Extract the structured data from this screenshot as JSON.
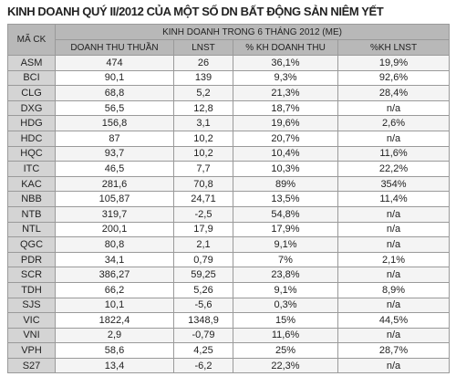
{
  "header": {
    "title": "KINH DOANH QUÝ II/2012 CỦA MỘT SỐ DN BẤT ĐỘNG SẢN NIÊM YẾT"
  },
  "table": {
    "corner": "MÃ CK",
    "group": "KINH DOANH TRONG 6 THÁNG 2012 (ME)",
    "columns": [
      "DOANH THU THUẦN",
      "LNST",
      "% KH DOANH THU",
      "%KH LNST"
    ],
    "rows": [
      [
        "ASM",
        "474",
        "26",
        "36,1%",
        "19,9%"
      ],
      [
        "BCI",
        "90,1",
        "139",
        "9,3%",
        "92,6%"
      ],
      [
        "CLG",
        "68,8",
        "5,2",
        "21,3%",
        "28,4%"
      ],
      [
        "DXG",
        "56,5",
        "12,8",
        "18,7%",
        "n/a"
      ],
      [
        "HDG",
        "156,8",
        "3,1",
        "19,6%",
        "2,6%"
      ],
      [
        "HDC",
        "87",
        "10,2",
        "20,7%",
        "n/a"
      ],
      [
        "HQC",
        "93,7",
        "10,2",
        "10,4%",
        "11,6%"
      ],
      [
        "ITC",
        "46,5",
        "7,7",
        "10,3%",
        "22,2%"
      ],
      [
        "KAC",
        "281,6",
        "70,8",
        "89%",
        "354%"
      ],
      [
        "NBB",
        "105,87",
        "24,71",
        "13,5%",
        "11,4%"
      ],
      [
        "NTB",
        "319,7",
        "-2,5",
        "54,8%",
        "n/a"
      ],
      [
        "NTL",
        "200,1",
        "17,9",
        "17,9%",
        "n/a"
      ],
      [
        "QGC",
        "80,8",
        "2,1",
        "9,1%",
        "n/a"
      ],
      [
        "PDR",
        "34,1",
        "0,79",
        "7%",
        "2,1%"
      ],
      [
        "SCR",
        "386,27",
        "59,25",
        "23,8%",
        "n/a"
      ],
      [
        "TDH",
        "66,2",
        "5,26",
        "9,1%",
        "8,9%"
      ],
      [
        "SJS",
        "10,1",
        "-5,6",
        "0,3%",
        "n/a"
      ],
      [
        "VIC",
        "1822,4",
        "1348,9",
        "15%",
        "44,5%"
      ],
      [
        "VNI",
        "2,9",
        "-0,79",
        "11,6%",
        "n/a"
      ],
      [
        "VPH",
        "58,6",
        "4,25",
        "25%",
        "28,7%"
      ],
      [
        "S27",
        "13,4",
        "-6,2",
        "22,3%",
        "n/a"
      ]
    ]
  }
}
